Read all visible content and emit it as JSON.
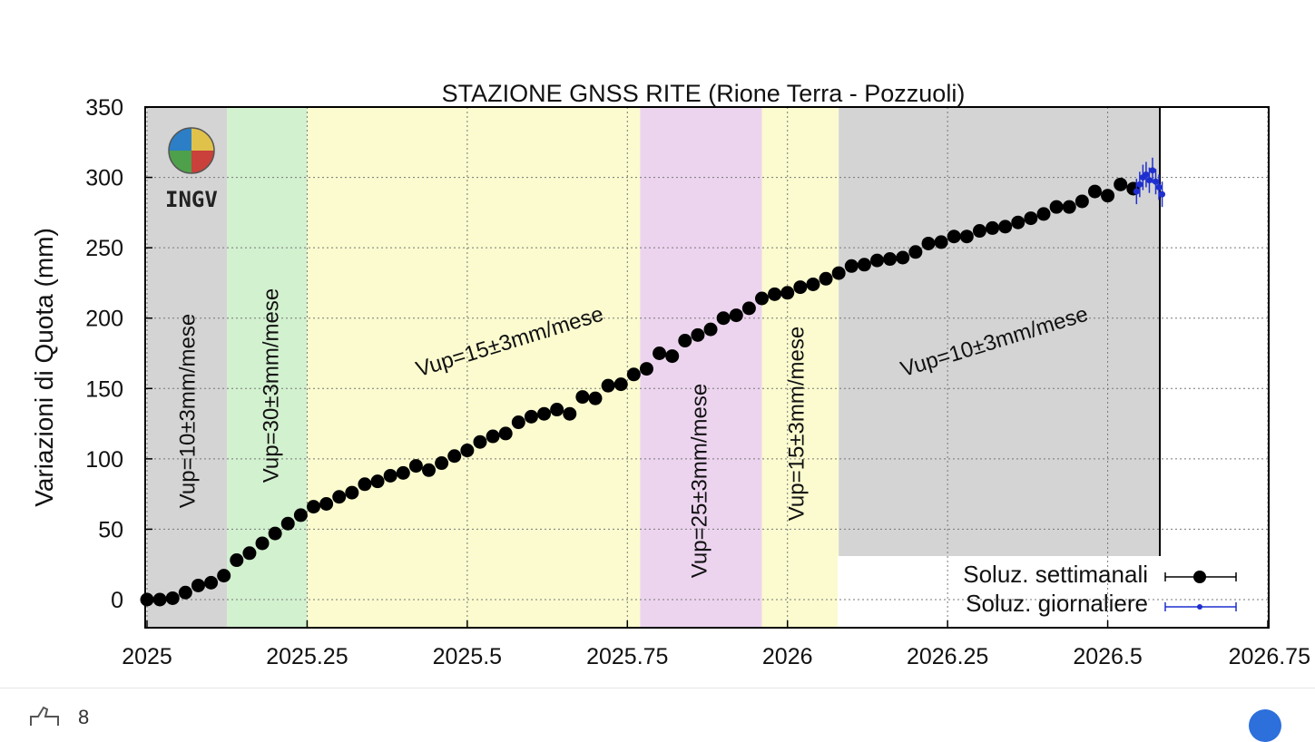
{
  "chart_data": {
    "type": "scatter",
    "title": "STAZIONE GNSS RITE (Rione Terra - Pozzuoli)",
    "xlabel": "",
    "ylabel": "Variazioni di Quota (mm)",
    "xlim": [
      2025,
      2026.75
    ],
    "ylim": [
      -20,
      350
    ],
    "x_ticks": [
      "2025",
      "2025.25",
      "2025.5",
      "2025.75",
      "2026",
      "2026.25",
      "2026.5",
      "2026.75"
    ],
    "y_ticks": [
      "0",
      "50",
      "100",
      "150",
      "200",
      "250",
      "300",
      "350"
    ],
    "grid": true,
    "logo_text": "INGV",
    "bands": [
      {
        "x0": 2025.0,
        "x1": 2025.125,
        "color": "#d4d4d4",
        "label": "Vup=10±3mm/mese"
      },
      {
        "x0": 2025.125,
        "x1": 2025.25,
        "color": "#d2f1cf",
        "label": "Vup=30±3mm/mese"
      },
      {
        "x0": 2025.25,
        "x1": 2025.77,
        "color": "#fbfbcf",
        "label": "Vup=15±3mm/mese"
      },
      {
        "x0": 2025.77,
        "x1": 2025.96,
        "color": "#ecd4ef",
        "label": "Vup=25±3mm/mese"
      },
      {
        "x0": 2025.96,
        "x1": 2026.08,
        "color": "#fbfbcf",
        "label": "Vup=15±3mm/mese"
      },
      {
        "x0": 2026.08,
        "x1": 2026.58,
        "color": "#d4d4d4",
        "label": "Vup=10±3mm/mese"
      }
    ],
    "series": [
      {
        "name": "Soluz. settimanali",
        "color": "#000000",
        "x": [
          2025.0,
          2025.02,
          2025.04,
          2025.06,
          2025.08,
          2025.1,
          2025.12,
          2025.14,
          2025.16,
          2025.18,
          2025.2,
          2025.22,
          2025.24,
          2025.26,
          2025.28,
          2025.3,
          2025.32,
          2025.34,
          2025.36,
          2025.38,
          2025.4,
          2025.42,
          2025.44,
          2025.46,
          2025.48,
          2025.5,
          2025.52,
          2025.54,
          2025.56,
          2025.58,
          2025.6,
          2025.62,
          2025.64,
          2025.66,
          2025.68,
          2025.7,
          2025.72,
          2025.74,
          2025.76,
          2025.78,
          2025.8,
          2025.82,
          2025.84,
          2025.86,
          2025.88,
          2025.9,
          2025.92,
          2025.94,
          2025.96,
          2025.98,
          2026.0,
          2026.02,
          2026.04,
          2026.06,
          2026.08,
          2026.1,
          2026.12,
          2026.14,
          2026.16,
          2026.18,
          2026.2,
          2026.22,
          2026.24,
          2026.26,
          2026.28,
          2026.3,
          2026.32,
          2026.34,
          2026.36,
          2026.38,
          2026.4,
          2026.42,
          2026.44,
          2026.46,
          2026.48,
          2026.5,
          2026.52,
          2026.54
        ],
        "y": [
          0,
          0,
          1,
          5,
          10,
          12,
          17,
          28,
          33,
          40,
          47,
          54,
          60,
          66,
          68,
          73,
          76,
          82,
          84,
          88,
          90,
          95,
          92,
          97,
          102,
          106,
          112,
          116,
          118,
          126,
          130,
          132,
          135,
          132,
          144,
          143,
          152,
          153,
          160,
          164,
          175,
          173,
          184,
          188,
          192,
          200,
          202,
          207,
          214,
          217,
          218,
          222,
          224,
          228,
          232,
          237,
          238,
          241,
          242,
          243,
          247,
          253,
          254,
          258,
          258,
          262,
          264,
          265,
          268,
          271,
          274,
          279,
          279,
          283,
          290,
          287,
          295,
          292
        ]
      },
      {
        "name": "Soluz. giornaliere",
        "color": "#1f2fcf",
        "x": [
          2026.545,
          2026.55,
          2026.555,
          2026.56,
          2026.565,
          2026.57,
          2026.575,
          2026.58,
          2026.585
        ],
        "y": [
          290,
          295,
          300,
          302,
          298,
          305,
          297,
          293,
          288
        ]
      }
    ],
    "legend": {
      "placement": "bottom-right",
      "entries": [
        "Soluz. settimanali",
        "Soluz. giornaliere"
      ]
    }
  },
  "footer": {
    "like_count": "8"
  }
}
